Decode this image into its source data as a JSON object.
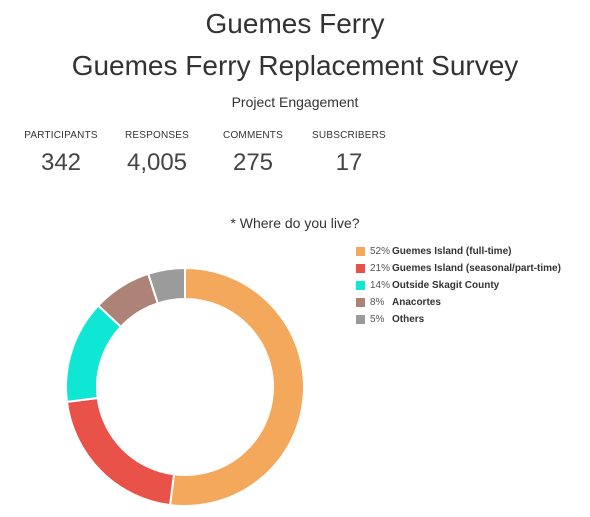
{
  "header": {
    "title": "Guemes Ferry",
    "subtitle": "Guemes Ferry Replacement Survey",
    "section": "Project Engagement"
  },
  "stats": [
    {
      "label": "PARTICIPANTS",
      "value": "342"
    },
    {
      "label": "RESPONSES",
      "value": "4,005"
    },
    {
      "label": "COMMENTS",
      "value": "275"
    },
    {
      "label": "SUBSCRIBERS",
      "value": "17"
    }
  ],
  "chart_data": {
    "type": "pie",
    "title": "* Where do you live?",
    "donut": true,
    "legend_position": "right",
    "categories": [
      "Guemes Island (full-time)",
      "Guemes Island (seasonal/part-time)",
      "Outside Skagit County",
      "Anacortes",
      "Others"
    ],
    "values": [
      52,
      21,
      14,
      8,
      5
    ],
    "value_labels": [
      "52%",
      "21%",
      "14%",
      "8%",
      "5%"
    ],
    "colors": [
      "#F4A85B",
      "#E95249",
      "#10E6D4",
      "#AD8377",
      "#9B9B9B"
    ]
  }
}
